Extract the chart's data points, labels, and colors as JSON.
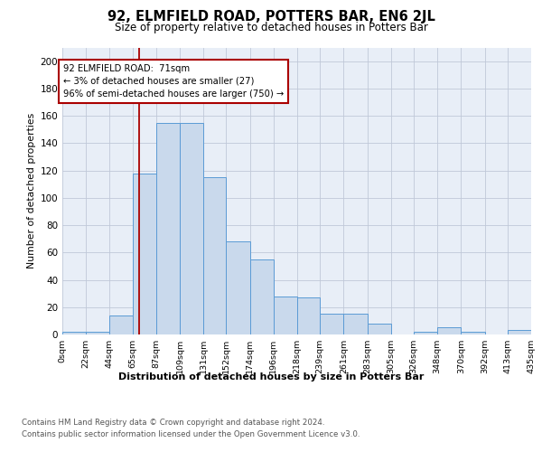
{
  "title1": "92, ELMFIELD ROAD, POTTERS BAR, EN6 2JL",
  "title2": "Size of property relative to detached houses in Potters Bar",
  "xlabel": "Distribution of detached houses by size in Potters Bar",
  "ylabel": "Number of detached properties",
  "bin_edges": [
    0,
    22,
    44,
    65,
    87,
    109,
    131,
    152,
    174,
    196,
    218,
    239,
    261,
    283,
    305,
    326,
    348,
    370,
    392,
    413,
    435
  ],
  "bin_labels": [
    "0sqm",
    "22sqm",
    "44sqm",
    "65sqm",
    "87sqm",
    "109sqm",
    "131sqm",
    "152sqm",
    "174sqm",
    "196sqm",
    "218sqm",
    "239sqm",
    "261sqm",
    "283sqm",
    "305sqm",
    "326sqm",
    "348sqm",
    "370sqm",
    "392sqm",
    "413sqm",
    "435sqm"
  ],
  "bar_heights": [
    2,
    2,
    14,
    118,
    155,
    155,
    115,
    68,
    55,
    28,
    27,
    15,
    15,
    8,
    0,
    2,
    5,
    2,
    0,
    3
  ],
  "bar_color": "#c9d9ec",
  "bar_edge_color": "#5b9bd5",
  "grid_color": "#c0c8d8",
  "bg_color": "#e8eef7",
  "vline_x": 71,
  "vline_color": "#aa0000",
  "annotation_text": "92 ELMFIELD ROAD:  71sqm\n← 3% of detached houses are smaller (27)\n96% of semi-detached houses are larger (750) →",
  "annotation_box_color": "#ffffff",
  "annotation_box_edge": "#aa0000",
  "ylim": [
    0,
    210
  ],
  "yticks": [
    0,
    20,
    40,
    60,
    80,
    100,
    120,
    140,
    160,
    180,
    200
  ],
  "footer_line1": "Contains HM Land Registry data © Crown copyright and database right 2024.",
  "footer_line2": "Contains public sector information licensed under the Open Government Licence v3.0."
}
